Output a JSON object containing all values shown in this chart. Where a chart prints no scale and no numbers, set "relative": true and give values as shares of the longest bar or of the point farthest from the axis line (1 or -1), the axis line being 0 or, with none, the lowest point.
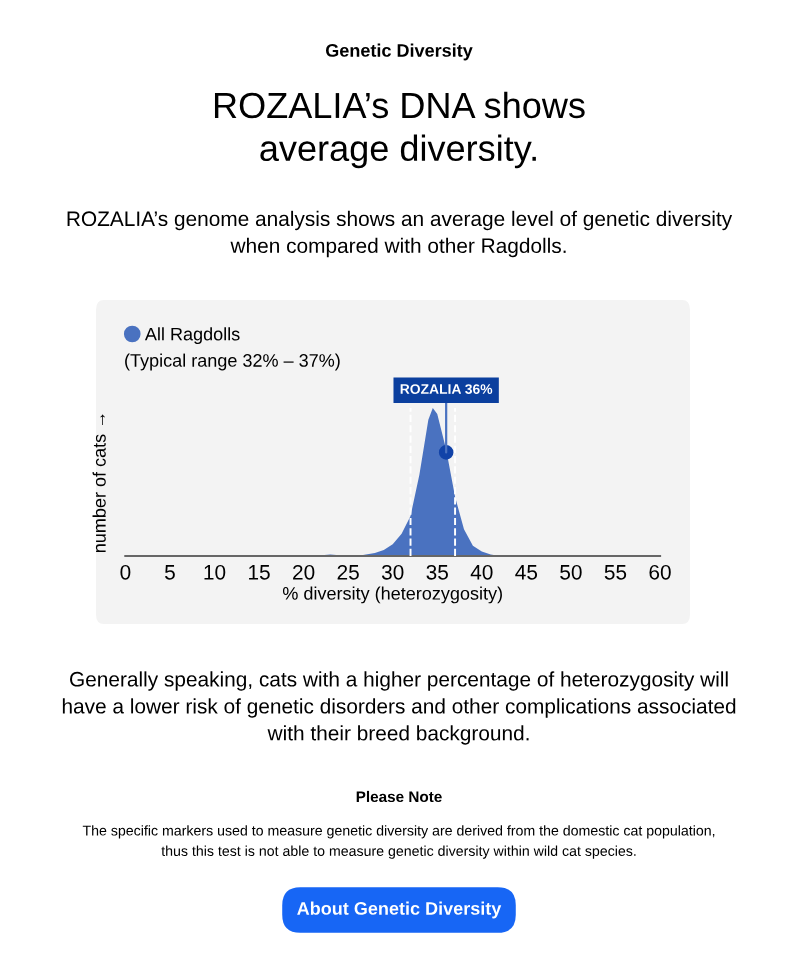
{
  "chart_data": {
    "type": "area",
    "relative": true,
    "title": "ROZALIA’s DNA shows\naverage diversity.",
    "subtitle": "ROZALIA’s genome analysis shows an average level of genetic diversity\nwhen compared with other Ragdolls.",
    "xlabel": "% diversity (heterozygosity)",
    "ylabel": "number of cats →",
    "xlim": [
      0,
      60
    ],
    "xticks": [
      0,
      5,
      10,
      15,
      20,
      25,
      30,
      35,
      40,
      45,
      50,
      55,
      60
    ],
    "legend": "top left",
    "grid": false,
    "series": [
      {
        "name": "All Ragdolls",
        "color": "#4a72c0",
        "x": [
          0,
          20,
          22,
          23,
          24,
          26,
          28,
          29,
          30,
          31,
          32,
          33,
          34,
          34.5,
          35,
          36,
          37,
          38,
          39,
          40,
          41,
          42,
          60
        ],
        "values": [
          0,
          0,
          0.005,
          0.01,
          0.005,
          0,
          0.02,
          0.04,
          0.08,
          0.15,
          0.27,
          0.55,
          0.92,
          1,
          0.96,
          0.72,
          0.4,
          0.18,
          0.07,
          0.03,
          0.01,
          0,
          0
        ]
      },
      {
        "type": "scatter",
        "color": "#1243a8",
        "x": [
          36
        ],
        "values": [
          0.7
        ],
        "marker": "circle"
      }
    ],
    "ref_lines": [
      {
        "axis": "x",
        "value": 32,
        "color": "#ffffff",
        "line_style": "dashed"
      },
      {
        "axis": "x",
        "value": 37,
        "color": "#ffffff",
        "line_style": "dashed"
      }
    ],
    "annotations": [
      "Genetic Diversity",
      "(Typical range 32% – 37%)",
      {
        "text": "ROZALIA 36%",
        "x": 36,
        "y": 0.7
      },
      "Generally speaking, cats with a higher percentage of heterozygosity will\nhave a lower risk of genetic disorders and other complications associated\nwith their breed background.",
      "Please Note",
      "The specific markers used to measure genetic diversity are derived from the domestic cat population,\nthus this test is not able to measure genetic diversity within wild cat species.",
      "About Genetic Diversity"
    ]
  }
}
